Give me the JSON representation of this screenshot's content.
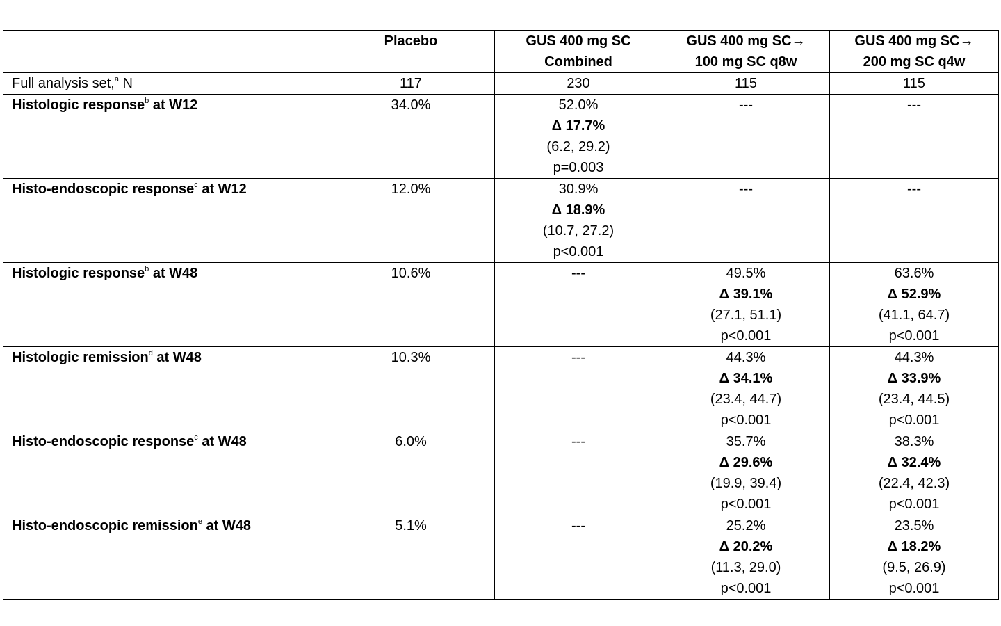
{
  "table": {
    "header": {
      "label": "",
      "col1": "Placebo",
      "col2": [
        "GUS 400 mg SC",
        "Combined"
      ],
      "col3": [
        "GUS 400 mg SC→",
        "100 mg SC q8w"
      ],
      "col4": [
        "GUS 400 mg SC→",
        "200 mg SC q4w"
      ]
    },
    "n_row": {
      "label_pre": "Full analysis set,",
      "label_sup": "a",
      "label_post": " N",
      "col1": "117",
      "col2": "230",
      "col3": "115",
      "col4": "115"
    },
    "rows": [
      {
        "label_pre": "Histologic response",
        "label_sup": "b",
        "label_post": " at W12",
        "col1": [
          "34.0%"
        ],
        "col2": [
          "52.0%",
          "Δ 17.7%",
          "(6.2, 29.2)",
          "p=0.003"
        ],
        "col3": [
          "---"
        ],
        "col4": [
          "---"
        ]
      },
      {
        "label_pre": "Histo-endoscopic response",
        "label_sup": "c",
        "label_post": " at W12",
        "col1": [
          "12.0%"
        ],
        "col2": [
          "30.9%",
          "Δ 18.9%",
          "(10.7, 27.2)",
          "p<0.001"
        ],
        "col3": [
          "---"
        ],
        "col4": [
          "---"
        ]
      },
      {
        "label_pre": "Histologic response",
        "label_sup": "b",
        "label_post": " at W48",
        "col1": [
          "10.6%"
        ],
        "col2": [
          "---"
        ],
        "col3": [
          "49.5%",
          "Δ 39.1%",
          "(27.1, 51.1)",
          "p<0.001"
        ],
        "col4": [
          "63.6%",
          "Δ 52.9%",
          "(41.1, 64.7)",
          "p<0.001"
        ]
      },
      {
        "label_pre": "Histologic remission",
        "label_sup": "d",
        "label_post": " at W48",
        "col1": [
          "10.3%"
        ],
        "col2": [
          "---"
        ],
        "col3": [
          "44.3%",
          "Δ 34.1%",
          "(23.4, 44.7)",
          "p<0.001"
        ],
        "col4": [
          "44.3%",
          "Δ 33.9%",
          "(23.4, 44.5)",
          "p<0.001"
        ]
      },
      {
        "label_pre": "Histo-endoscopic response",
        "label_sup": "c",
        "label_post": " at W48",
        "col1": [
          "6.0%"
        ],
        "col2": [
          "---"
        ],
        "col3": [
          "35.7%",
          "Δ 29.6%",
          "(19.9, 39.4)",
          "p<0.001"
        ],
        "col4": [
          "38.3%",
          "Δ 32.4%",
          "(22.4, 42.3)",
          "p<0.001"
        ]
      },
      {
        "label_pre": "Histo-endoscopic remission",
        "label_sup": "e",
        "label_post": " at W48",
        "col1": [
          "5.1%"
        ],
        "col2": [
          "---"
        ],
        "col3": [
          "25.2%",
          "Δ 20.2%",
          "(11.3, 29.0)",
          "p<0.001"
        ],
        "col4": [
          "23.5%",
          "Δ 18.2%",
          "(9.5, 26.9)",
          "p<0.001"
        ]
      }
    ]
  }
}
